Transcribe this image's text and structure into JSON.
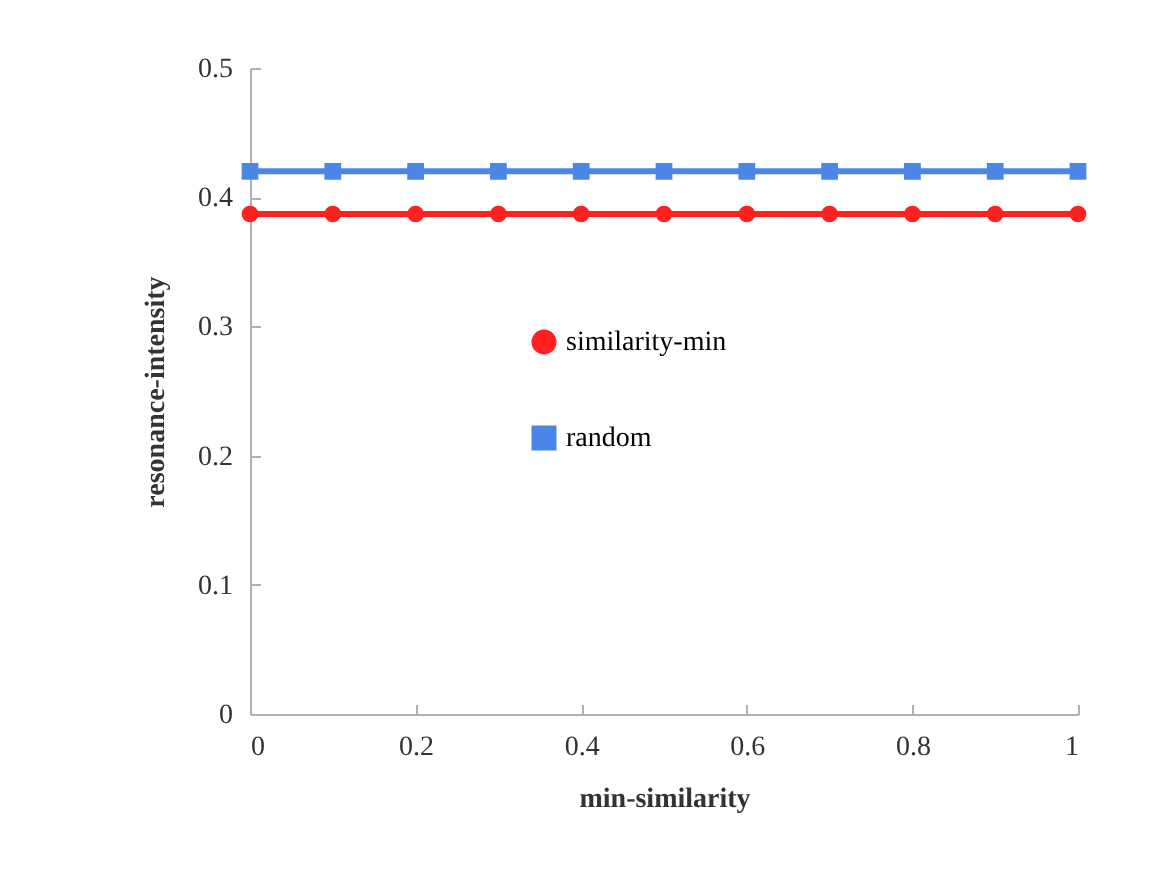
{
  "chart_data": {
    "type": "line",
    "xlabel": "min-similarity",
    "ylabel": "resonance-intensity",
    "x": [
      0,
      0.1,
      0.2,
      0.3,
      0.4,
      0.5,
      0.6,
      0.7,
      0.8,
      0.9,
      1
    ],
    "series": [
      {
        "name": "similarity-min",
        "color": "#ff2020",
        "marker": "circle",
        "values": [
          0.387,
          0.387,
          0.387,
          0.387,
          0.387,
          0.387,
          0.387,
          0.387,
          0.387,
          0.387,
          0.387
        ]
      },
      {
        "name": "random",
        "color": "#4a86e8",
        "marker": "square",
        "values": [
          0.42,
          0.42,
          0.42,
          0.42,
          0.42,
          0.42,
          0.42,
          0.42,
          0.42,
          0.42,
          0.42
        ]
      }
    ],
    "xlim": [
      0,
      1
    ],
    "xticks": [
      0,
      0.2,
      0.4,
      0.6,
      0.8,
      1
    ],
    "ylim": [
      0,
      0.5
    ],
    "yticks": [
      0,
      0.1,
      0.2,
      0.3,
      0.4,
      0.5
    ],
    "grid": false,
    "legend": "right",
    "line_style": "solid"
  }
}
